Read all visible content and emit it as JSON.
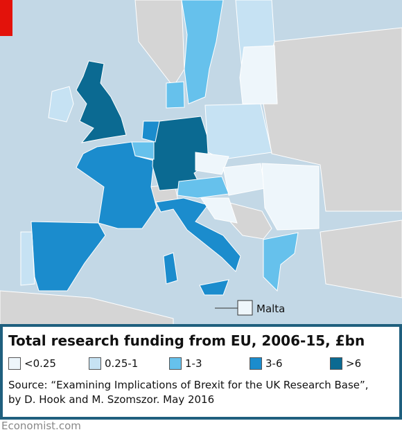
{
  "map": {
    "malta_label": "Malta"
  },
  "legend": {
    "title": "Total research funding from EU, 2006-15, £bn",
    "items": [
      {
        "label": "<0.25",
        "color": "#eef6fb"
      },
      {
        "label": "0.25-1",
        "color": "#c6e2f3"
      },
      {
        "label": "1-3",
        "color": "#66c1ec"
      },
      {
        "label": "3-6",
        "color": "#1b8ccd"
      },
      {
        "label": ">6",
        "color": "#0b6a92"
      }
    ]
  },
  "source": "Source: “Examining Implications of Brexit for the UK Research Base”, by D. Hook and M. Szomszor. May 2016",
  "footer": "Economist.com"
}
